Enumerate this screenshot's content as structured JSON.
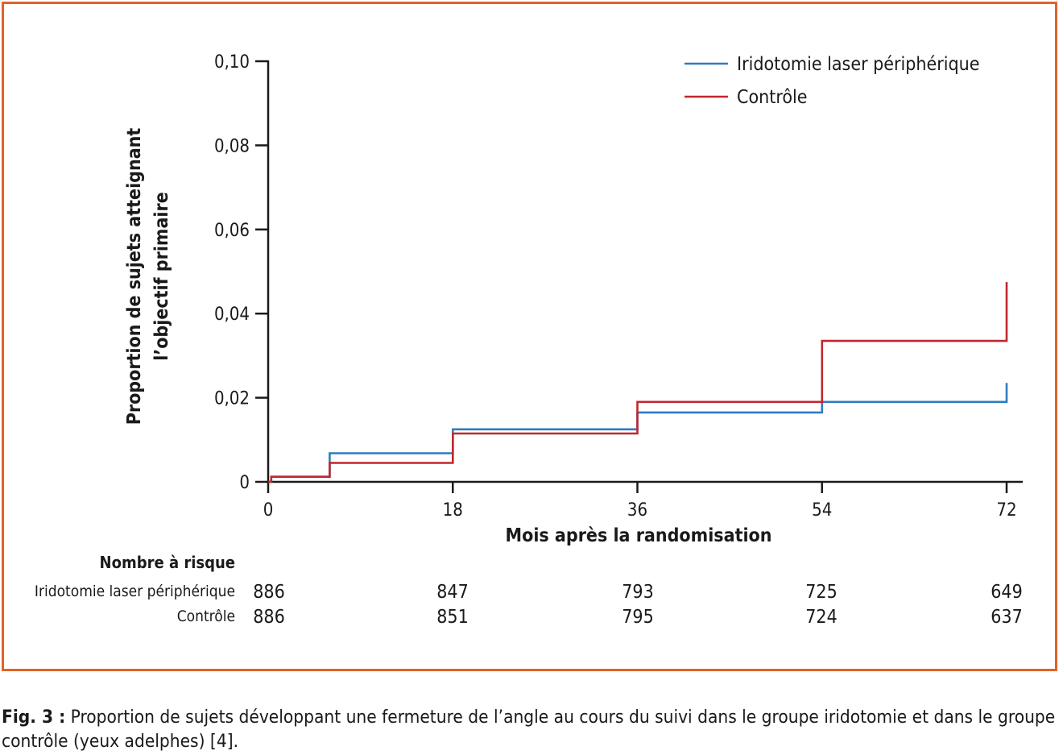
{
  "chart_data": {
    "type": "line",
    "step": true,
    "ylabel_line1": "Proportion de sujets atteignant",
    "ylabel_line2": "l’objectif primaire",
    "xlabel": "Mois après la randomisation",
    "xlim": [
      0,
      72
    ],
    "ylim": [
      0,
      0.1
    ],
    "x_ticks": [
      0,
      18,
      36,
      54,
      72
    ],
    "x_tick_labels": [
      "0",
      "18",
      "36",
      "54",
      "72"
    ],
    "y_ticks": [
      0,
      0.02,
      0.04,
      0.06,
      0.08,
      0.1
    ],
    "y_tick_labels": [
      "0",
      "0,02",
      "0,04",
      "0,06",
      "0,08",
      "0,10"
    ],
    "legend_position": "top-right",
    "series": [
      {
        "name": "Iridotomie laser périphérique",
        "color": "#2f7bbf",
        "points": [
          [
            0,
            0
          ],
          [
            0.3,
            0
          ],
          [
            0.3,
            0.0012
          ],
          [
            6,
            0.0012
          ],
          [
            6,
            0.0068
          ],
          [
            18,
            0.0068
          ],
          [
            18,
            0.0125
          ],
          [
            36,
            0.0125
          ],
          [
            36,
            0.0165
          ],
          [
            54,
            0.0165
          ],
          [
            54,
            0.019
          ],
          [
            72,
            0.019
          ],
          [
            72,
            0.0235
          ]
        ]
      },
      {
        "name": "Contrôle",
        "color": "#c1272d",
        "points": [
          [
            0,
            0
          ],
          [
            0.3,
            0
          ],
          [
            0.3,
            0.0012
          ],
          [
            6,
            0.0012
          ],
          [
            6,
            0.0045
          ],
          [
            18,
            0.0045
          ],
          [
            18,
            0.0115
          ],
          [
            36,
            0.0115
          ],
          [
            36,
            0.019
          ],
          [
            54,
            0.019
          ],
          [
            54,
            0.0335
          ],
          [
            72,
            0.0335
          ],
          [
            72,
            0.0475
          ]
        ]
      }
    ],
    "at_risk": {
      "title": "Nombre à risque",
      "rows": [
        {
          "label": "Iridotomie laser périphérique",
          "values": [
            886,
            847,
            793,
            725,
            649
          ]
        },
        {
          "label": "Contrôle",
          "values": [
            886,
            851,
            795,
            724,
            637
          ]
        }
      ]
    }
  },
  "caption": {
    "label": "Fig. 3 :",
    "text": " Proportion de sujets développant une fermeture de l’angle au cours du suivi dans le groupe iridotomie et dans le groupe contrôle (yeux adelphes) [4]."
  }
}
